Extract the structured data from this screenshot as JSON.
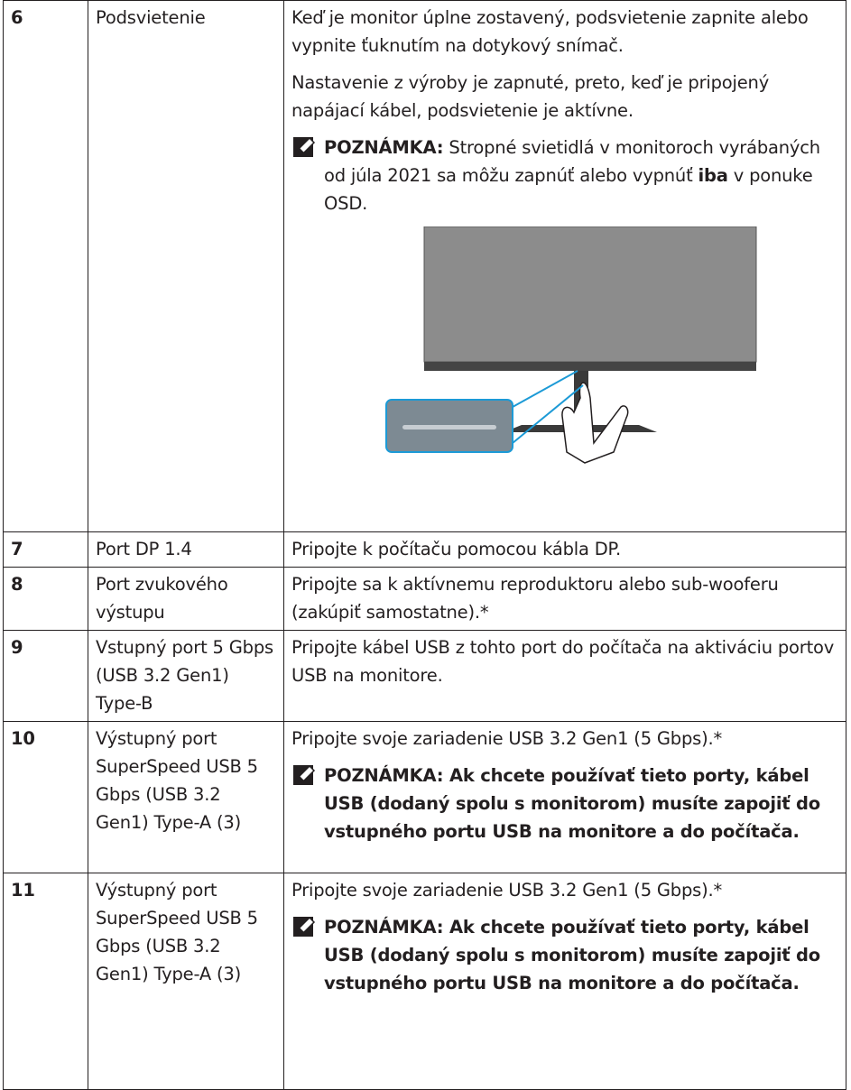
{
  "table": {
    "rows": [
      {
        "number": "6",
        "name": "Podsvietenie",
        "paragraphs": [
          "Keď je monitor úplne zostavený, podsvietenie zapnite alebo vypnite ťuknutím na dotykový snímač.",
          "Nastavenie z výroby je zapnuté, preto, keď je pripojený napájací kábel, podsvietenie je aktívne."
        ],
        "note": {
          "label": "POZNÁMKA:",
          "text_before": "Stropné svietidlá v monitoroch vyrábaných od júla 2021 sa môžu zapnúť alebo vypnúť",
          "emphasis": "iba",
          "text_after": "v ponuke OSD."
        }
      },
      {
        "number": "7",
        "name": "Port DP 1.4",
        "paragraphs": [
          "Pripojte k počítaču pomocou kábla DP."
        ]
      },
      {
        "number": "8",
        "name": "Port zvukového výstupu",
        "paragraphs": [
          "Pripojte sa k aktívnemu reproduktoru alebo sub-wooferu (zakúpiť samostatne).*"
        ]
      },
      {
        "number": "9",
        "name": "Vstupný port 5 Gbps (USB 3.2 Gen1) Type-B",
        "paragraphs": [
          "Pripojte kábel USB z tohto port do počítača na aktiváciu portov USB na monitore."
        ]
      },
      {
        "number": "10",
        "name": "Výstupný port SuperSpeed USB 5 Gbps (USB 3.2 Gen1) Type-A (3)",
        "paragraphs": [
          "Pripojte svoje zariadenie USB 3.2 Gen1 (5 Gbps).*"
        ],
        "note": {
          "text": "POZNÁMKA: Ak chcete používať tieto porty, kábel USB (dodaný spolu s monitorom) musíte zapojiť do vstupného portu USB na monitore a do počítača."
        }
      },
      {
        "number": "11",
        "name": "Výstupný port SuperSpeed USB 5 Gbps (USB 3.2 Gen1) Type-A (3)",
        "paragraphs": [
          "Pripojte svoje zariadenie USB 3.2 Gen1 (5 Gbps).*"
        ],
        "note": {
          "text": "POZNÁMKA: Ak chcete používať tieto porty, kábel USB (dodaný spolu s monitorom) musíte zapojiť do vstupného portu USB na monitore a do počítača."
        }
      }
    ]
  }
}
